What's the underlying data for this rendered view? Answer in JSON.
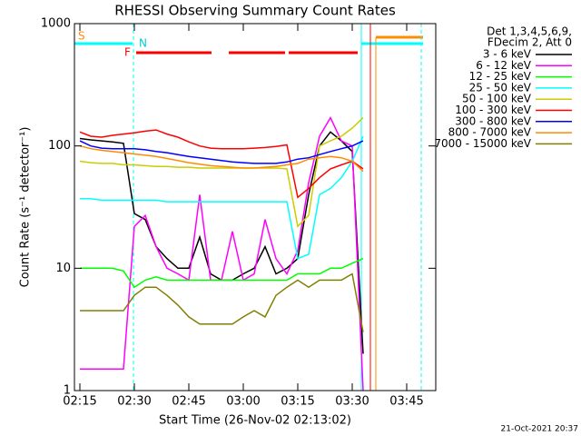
{
  "chart_data": {
    "type": "line",
    "title": "RHESSI Observing Summary Count Rates",
    "xlabel": "Start Time (26-Nov-02 02:13:02)",
    "ylabel": "Count Rate (s⁻¹ detector⁻¹)",
    "legend_header": [
      "Det 1,3,4,5,6,9,",
      "FDecim 2, Att 0"
    ],
    "footer": "21-Oct-2021 20:37",
    "flags": [
      "S",
      "N",
      "F"
    ],
    "log_y": true,
    "xlim": [
      "02:13:30",
      "03:53:00"
    ],
    "xticks": [
      "02:15",
      "02:30",
      "02:45",
      "03:00",
      "03:15",
      "03:30",
      "03:45"
    ],
    "ylim": [
      1,
      1000
    ],
    "yticks": [
      1,
      10,
      100,
      1000
    ],
    "x": [
      "02:15",
      "02:18",
      "02:21",
      "02:24",
      "02:27",
      "02:30",
      "02:33",
      "02:36",
      "02:39",
      "02:42",
      "02:45",
      "02:48",
      "02:51",
      "02:54",
      "02:57",
      "03:00",
      "03:03",
      "03:06",
      "03:09",
      "03:12",
      "03:15",
      "03:18",
      "03:21",
      "03:24",
      "03:27",
      "03:30",
      "03:33"
    ],
    "series": [
      {
        "name": "3 - 6 keV",
        "color": "#000000",
        "values": [
          115,
          112,
          110,
          108,
          105,
          28,
          25,
          15,
          12,
          10,
          10,
          18,
          9,
          8,
          8,
          9,
          10,
          15,
          9,
          10,
          12,
          40,
          100,
          130,
          110,
          90,
          2
        ]
      },
      {
        "name": "6 - 12 keV",
        "color": "#ff00ff",
        "values": [
          1.5,
          1.5,
          1.5,
          1.5,
          1.5,
          22,
          27,
          15,
          10,
          9,
          8,
          40,
          8,
          8,
          20,
          8,
          9,
          25,
          12,
          9,
          14,
          50,
          120,
          170,
          110,
          100,
          1
        ]
      },
      {
        "name": "12 - 25 keV",
        "color": "#00ff00",
        "values": [
          10,
          10,
          10,
          10,
          9.5,
          7,
          8,
          8.5,
          8,
          8,
          8,
          8,
          8,
          8,
          8,
          8,
          8,
          8,
          8,
          8,
          9,
          9,
          9,
          10,
          10,
          11,
          12
        ]
      },
      {
        "name": "25 - 50 keV",
        "color": "#00ffff",
        "values": [
          37,
          37,
          36,
          36,
          36,
          36,
          36,
          36,
          35,
          35,
          35,
          35,
          35,
          35,
          35,
          35,
          35,
          35,
          35,
          35,
          12,
          13,
          40,
          45,
          55,
          75,
          120
        ]
      },
      {
        "name": "50 - 100 keV",
        "color": "#cccc00",
        "values": [
          75,
          73,
          72,
          72,
          70,
          70,
          69,
          68,
          68,
          67,
          67,
          66,
          66,
          66,
          66,
          66,
          66,
          66,
          66,
          65,
          22,
          27,
          100,
          110,
          120,
          140,
          170
        ]
      },
      {
        "name": "100 - 300 keV",
        "color": "#ff0000",
        "values": [
          130,
          120,
          118,
          122,
          125,
          128,
          132,
          135,
          125,
          118,
          108,
          100,
          96,
          95,
          95,
          95,
          96,
          97,
          99,
          102,
          38,
          45,
          55,
          65,
          70,
          75,
          65
        ]
      },
      {
        "name": "300 - 800 keV",
        "color": "#0000ff",
        "values": [
          110,
          100,
          96,
          95,
          95,
          95,
          93,
          90,
          88,
          85,
          82,
          80,
          78,
          76,
          74,
          73,
          72,
          72,
          72,
          74,
          78,
          80,
          85,
          90,
          95,
          100,
          110
        ]
      },
      {
        "name": "800 - 7000 keV",
        "color": "#ff8c00",
        "values": [
          100,
          95,
          92,
          90,
          88,
          86,
          84,
          82,
          79,
          76,
          73,
          71,
          69,
          68,
          67,
          66,
          66,
          67,
          68,
          70,
          72,
          78,
          80,
          82,
          80,
          75,
          62
        ]
      },
      {
        "name": "7000 - 15000 keV",
        "color": "#808000",
        "values": [
          4.5,
          4.5,
          4.5,
          4.5,
          4.5,
          6,
          7,
          7,
          6,
          5,
          4,
          3.5,
          3.5,
          3.5,
          3.5,
          4,
          4.5,
          4,
          6,
          7,
          8,
          7,
          8,
          8,
          8,
          9,
          3
        ]
      }
    ]
  }
}
